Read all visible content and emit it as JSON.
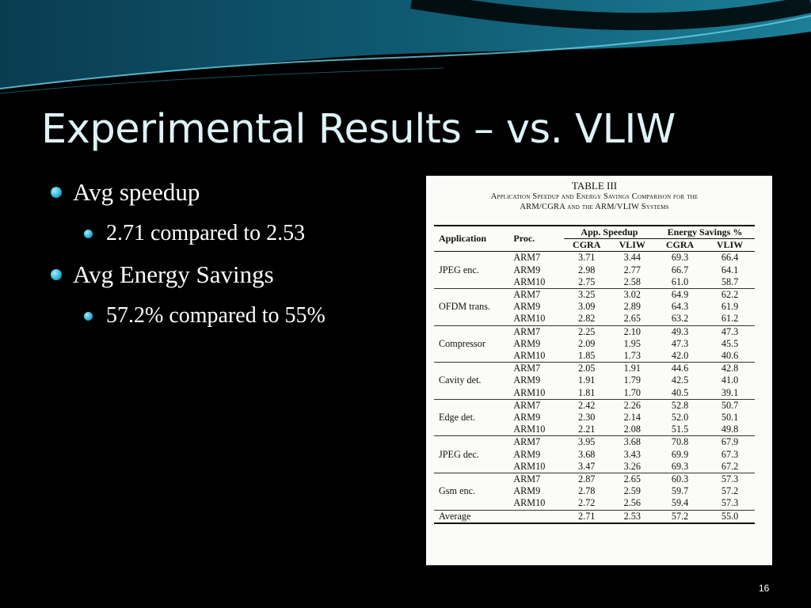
{
  "slide": {
    "title": "Experimental Results – vs. VLIW",
    "page_number": "16"
  },
  "bullets": [
    {
      "text": "Avg speedup",
      "children": [
        {
          "text": "2.71 compared to 2.53"
        }
      ]
    },
    {
      "text": "Avg Energy Savings",
      "children": [
        {
          "text": "57.2% compared to 55%"
        }
      ]
    }
  ],
  "table": {
    "caption": "TABLE III",
    "subtitle_line1": "Application Speedup and Energy Savings Comparison for the",
    "subtitle_line2": "ARM/CGRA and the ARM/VLIW Systems",
    "headers": {
      "application": "Application",
      "proc": "Proc.",
      "speedup_group": "App. Speedup",
      "energy_group": "Energy Savings %",
      "cgra": "CGRA",
      "vliw": "VLIW"
    },
    "groups": [
      {
        "app": "JPEG enc.",
        "rows": [
          {
            "proc": "ARM7",
            "s_cgra": "3.71",
            "s_vliw": "3.44",
            "e_cgra": "69.3",
            "e_vliw": "66.4"
          },
          {
            "proc": "ARM9",
            "s_cgra": "2.98",
            "s_vliw": "2.77",
            "e_cgra": "66.7",
            "e_vliw": "64.1"
          },
          {
            "proc": "ARM10",
            "s_cgra": "2.75",
            "s_vliw": "2.58",
            "e_cgra": "61.0",
            "e_vliw": "58.7"
          }
        ]
      },
      {
        "app": "OFDM trans.",
        "rows": [
          {
            "proc": "ARM7",
            "s_cgra": "3.25",
            "s_vliw": "3.02",
            "e_cgra": "64.9",
            "e_vliw": "62.2"
          },
          {
            "proc": "ARM9",
            "s_cgra": "3.09",
            "s_vliw": "2.89",
            "e_cgra": "64.3",
            "e_vliw": "61.9"
          },
          {
            "proc": "ARM10",
            "s_cgra": "2.82",
            "s_vliw": "2.65",
            "e_cgra": "63.2",
            "e_vliw": "61.2"
          }
        ]
      },
      {
        "app": "Compressor",
        "rows": [
          {
            "proc": "ARM7",
            "s_cgra": "2.25",
            "s_vliw": "2.10",
            "e_cgra": "49.3",
            "e_vliw": "47.3"
          },
          {
            "proc": "ARM9",
            "s_cgra": "2.09",
            "s_vliw": "1.95",
            "e_cgra": "47.3",
            "e_vliw": "45.5"
          },
          {
            "proc": "ARM10",
            "s_cgra": "1.85",
            "s_vliw": "1.73",
            "e_cgra": "42.0",
            "e_vliw": "40.6"
          }
        ]
      },
      {
        "app": "Cavity det.",
        "rows": [
          {
            "proc": "ARM7",
            "s_cgra": "2.05",
            "s_vliw": "1.91",
            "e_cgra": "44.6",
            "e_vliw": "42.8"
          },
          {
            "proc": "ARM9",
            "s_cgra": "1.91",
            "s_vliw": "1.79",
            "e_cgra": "42.5",
            "e_vliw": "41.0"
          },
          {
            "proc": "ARM10",
            "s_cgra": "1.81",
            "s_vliw": "1.70",
            "e_cgra": "40.5",
            "e_vliw": "39.1"
          }
        ]
      },
      {
        "app": "Edge det.",
        "rows": [
          {
            "proc": "ARM7",
            "s_cgra": "2.42",
            "s_vliw": "2.26",
            "e_cgra": "52.8",
            "e_vliw": "50.7"
          },
          {
            "proc": "ARM9",
            "s_cgra": "2.30",
            "s_vliw": "2.14",
            "e_cgra": "52.0",
            "e_vliw": "50.1"
          },
          {
            "proc": "ARM10",
            "s_cgra": "2.21",
            "s_vliw": "2.08",
            "e_cgra": "51.5",
            "e_vliw": "49.8"
          }
        ]
      },
      {
        "app": "JPEG dec.",
        "rows": [
          {
            "proc": "ARM7",
            "s_cgra": "3.95",
            "s_vliw": "3.68",
            "e_cgra": "70.8",
            "e_vliw": "67.9"
          },
          {
            "proc": "ARM9",
            "s_cgra": "3.68",
            "s_vliw": "3.43",
            "e_cgra": "69.9",
            "e_vliw": "67.3"
          },
          {
            "proc": "ARM10",
            "s_cgra": "3.47",
            "s_vliw": "3.26",
            "e_cgra": "69.3",
            "e_vliw": "67.2"
          }
        ]
      },
      {
        "app": "Gsm enc.",
        "rows": [
          {
            "proc": "ARM7",
            "s_cgra": "2.87",
            "s_vliw": "2.65",
            "e_cgra": "60.3",
            "e_vliw": "57.3"
          },
          {
            "proc": "ARM9",
            "s_cgra": "2.78",
            "s_vliw": "2.59",
            "e_cgra": "59.7",
            "e_vliw": "57.2"
          },
          {
            "proc": "ARM10",
            "s_cgra": "2.72",
            "s_vliw": "2.56",
            "e_cgra": "59.4",
            "e_vliw": "57.3"
          }
        ]
      }
    ],
    "average": {
      "label": "Average",
      "s_cgra": "2.71",
      "s_vliw": "2.53",
      "e_cgra": "57.2",
      "e_vliw": "55.0"
    }
  },
  "theme": {
    "bullet_color": "#1aa3c5",
    "title_color": "#dff3f7",
    "background": "#000000"
  }
}
